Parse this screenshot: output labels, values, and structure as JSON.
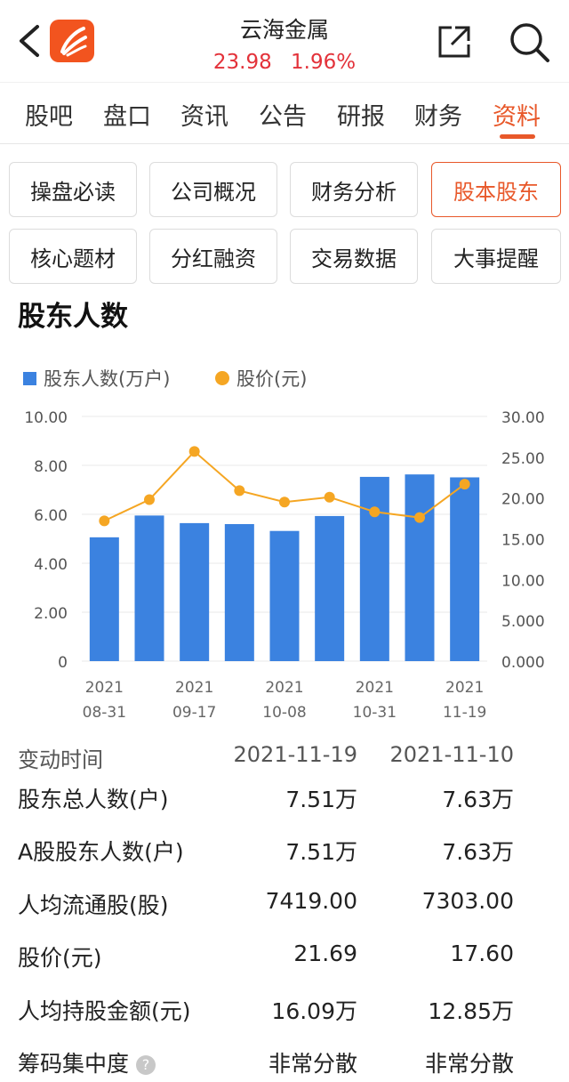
{
  "header": {
    "stock_name": "云海金属",
    "price": "23.98",
    "change_pct": "1.96%"
  },
  "tabs": [
    {
      "label": "股吧"
    },
    {
      "label": "盘口"
    },
    {
      "label": "资讯"
    },
    {
      "label": "公告"
    },
    {
      "label": "研报"
    },
    {
      "label": "财务"
    },
    {
      "label": "资料"
    }
  ],
  "active_tab": "资料",
  "chips": [
    {
      "label": "操盘必读"
    },
    {
      "label": "公司概况"
    },
    {
      "label": "财务分析"
    },
    {
      "label": "股本股东"
    },
    {
      "label": "核心题材"
    },
    {
      "label": "分红融资"
    },
    {
      "label": "交易数据"
    },
    {
      "label": "大事提醒"
    }
  ],
  "active_chip": "股本股东",
  "section_title": "股东人数",
  "colors": {
    "accent": "#e8582a",
    "bar": "#3b82e0",
    "line": "#f5a623",
    "price_up": "#e3323a"
  },
  "chart_data": {
    "type": "bar",
    "title": "",
    "xlabel": "",
    "ylabel": "",
    "legend": "top-left",
    "grid": true,
    "x_tick_labels": [
      {
        "year": "2021",
        "date": "08-31"
      },
      {
        "year": "2021",
        "date": "09-17"
      },
      {
        "year": "2021",
        "date": "10-08"
      },
      {
        "year": "2021",
        "date": "10-31"
      },
      {
        "year": "2021",
        "date": "11-19"
      }
    ],
    "ylim": [
      0,
      10
    ],
    "y2lim": [
      0,
      30
    ],
    "y_ticks": [
      "10.00",
      "8.00",
      "6.00",
      "4.00",
      "2.00",
      "0"
    ],
    "y2_ticks": [
      "30.00",
      "25.00",
      "20.00",
      "15.00",
      "10.00",
      "5.000",
      "0.000"
    ],
    "series": [
      {
        "name": "股东人数(万户)",
        "axis": "left",
        "type": "bar",
        "values": [
          5.06,
          5.95,
          5.64,
          5.6,
          5.32,
          5.93,
          7.53,
          7.63,
          7.51
        ]
      },
      {
        "name": "股价(元)",
        "axis": "right",
        "type": "line",
        "values": [
          17.2,
          19.8,
          25.7,
          20.9,
          19.5,
          20.1,
          18.3,
          17.6,
          21.7
        ]
      }
    ]
  },
  "table": {
    "header": {
      "label": "变动时间",
      "col1": "2021-11-19",
      "col2": "2021-11-10"
    },
    "rows": [
      {
        "label": "股东总人数(户)",
        "v1": "7.51万",
        "v2": "7.63万"
      },
      {
        "label": "A股股东人数(户)",
        "v1": "7.51万",
        "v2": "7.63万"
      },
      {
        "label": "人均流通股(股)",
        "v1": "7419.00",
        "v2": "7303.00"
      },
      {
        "label": "股价(元)",
        "v1": "21.69",
        "v2": "17.60"
      },
      {
        "label": "人均持股金额(元)",
        "v1": "16.09万",
        "v2": "12.85万"
      },
      {
        "label": "筹码集中度",
        "v1": "非常分散",
        "v2": "非常分散",
        "help": "?"
      }
    ]
  }
}
